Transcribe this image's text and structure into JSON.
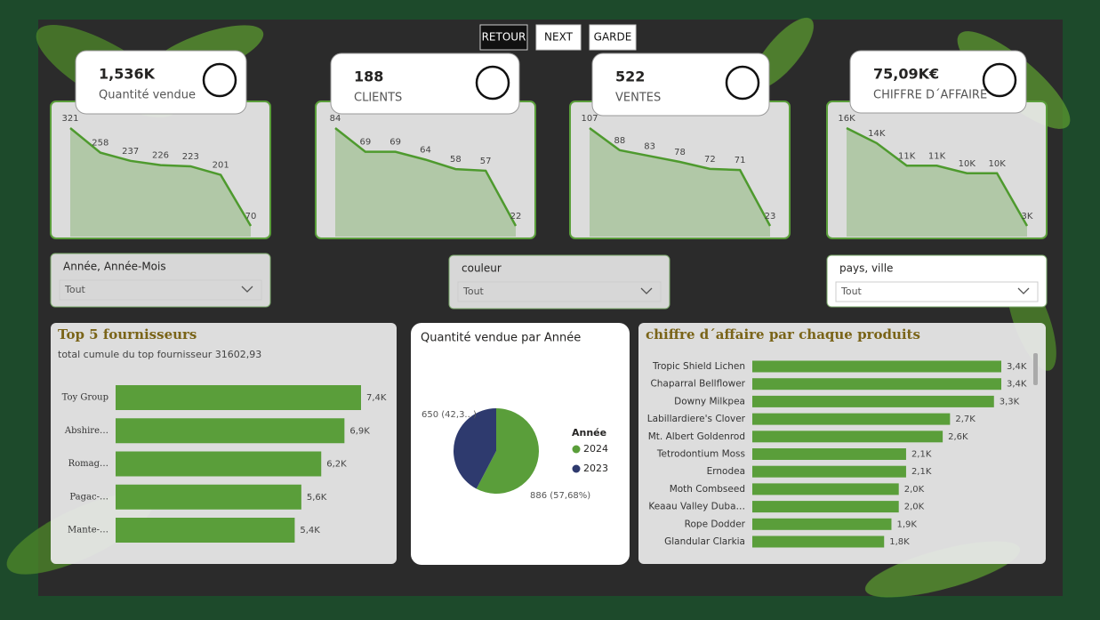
{
  "buttons": [
    "RETOUR",
    "NEXT",
    "GARDE"
  ],
  "kpis": [
    {
      "value": "1,536K",
      "label": "Quantité vendue"
    },
    {
      "value": "188",
      "label": "CLIENTS"
    },
    {
      "value": "522",
      "label": "VENTES"
    },
    {
      "value": "75,09K€",
      "label": "CHIFFRE D´AFFAIRE"
    }
  ],
  "slicers": [
    {
      "label": "Année, Année-Mois",
      "value": "Tout"
    },
    {
      "label": "couleur",
      "value": "Tout"
    },
    {
      "label": "pays, ville",
      "value": "Tout"
    }
  ],
  "chart_data": [
    {
      "type": "area",
      "color": "#4e9a2e",
      "values": [
        321,
        258,
        237,
        226,
        223,
        201,
        70
      ]
    },
    {
      "type": "area",
      "color": "#4e9a2e",
      "values": [
        84,
        69,
        69,
        64,
        58,
        57,
        22
      ]
    },
    {
      "type": "area",
      "color": "#4e9a2e",
      "values": [
        107,
        88,
        83,
        78,
        72,
        71,
        23
      ]
    },
    {
      "type": "area",
      "color": "#4e9a2e",
      "values": [
        16000,
        14000,
        11000,
        11000,
        10000,
        10000,
        3000
      ],
      "value_labels": [
        "16K",
        "14K",
        "11K",
        "11K",
        "10K",
        "10K",
        "3K"
      ]
    },
    {
      "type": "bar",
      "orientation": "horizontal",
      "title": "Top 5 fournisseurs",
      "subtitle": "total cumule du top fournisseur 31602,93",
      "color": "#5a9e3a",
      "categories": [
        "Toy Group",
        "Abshire…",
        "Romag…",
        "Pagac-…",
        "Mante-…"
      ],
      "values": [
        7400,
        6900,
        6200,
        5600,
        5400
      ],
      "value_labels": [
        "7,4K",
        "6,9K",
        "6,2K",
        "5,6K",
        "5,4K"
      ]
    },
    {
      "type": "pie",
      "title": "Quantité vendue par Année",
      "legend_title": "Année",
      "categories": [
        "2024",
        "2023"
      ],
      "values": [
        886,
        650
      ],
      "colors": [
        "#5a9e3a",
        "#2e3a6e"
      ],
      "value_labels": [
        "886 (57,68%)",
        "650 (42,3...)"
      ]
    },
    {
      "type": "bar",
      "orientation": "horizontal",
      "title": "chiffre d´affaire par chaque produits",
      "color": "#5a9e3a",
      "categories": [
        "Tropic Shield Lichen",
        "Chaparral Bellflower",
        "Downy Milkpea",
        "Labillardiere's Clover",
        "Mt. Albert Goldenrod",
        "Tetrodontium Moss",
        "Ernodea",
        "Moth Combseed",
        "Keaau Valley Duba…",
        "Rope Dodder",
        "Glandular Clarkia"
      ],
      "values": [
        3400,
        3400,
        3300,
        2700,
        2600,
        2100,
        2100,
        2000,
        2000,
        1900,
        1800
      ],
      "value_labels": [
        "3,4K",
        "3,4K",
        "3,3K",
        "2,7K",
        "2,6K",
        "2,1K",
        "2,1K",
        "2,0K",
        "2,0K",
        "1,9K",
        "1,8K"
      ]
    }
  ]
}
